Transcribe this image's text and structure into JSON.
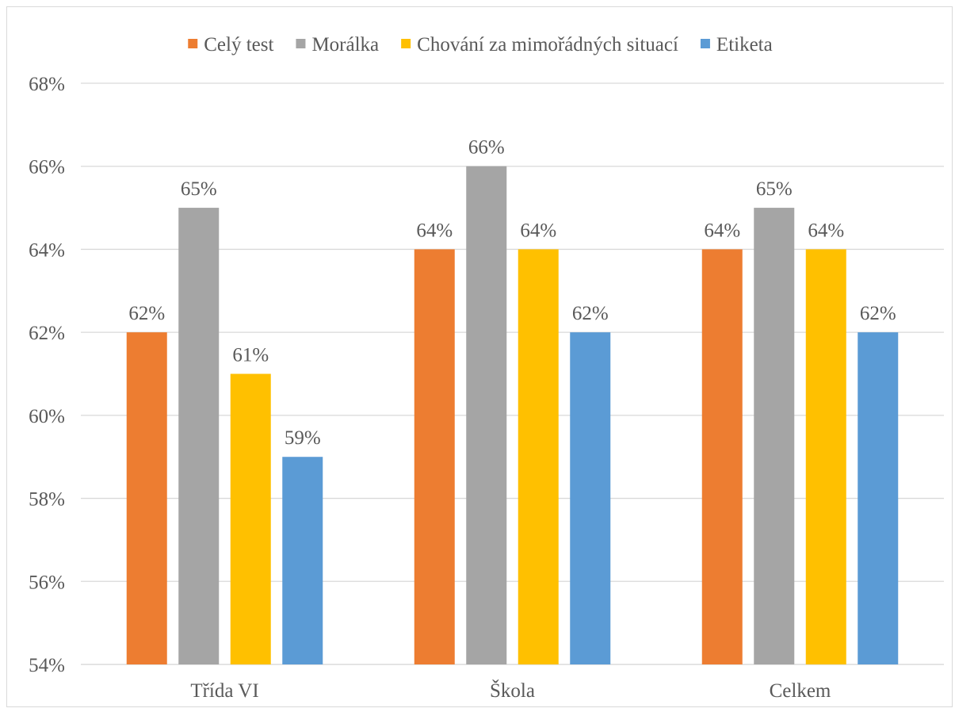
{
  "chart_data": {
    "type": "bar",
    "categories": [
      "Třída VI",
      "Škola",
      "Celkem"
    ],
    "series": [
      {
        "name": "Celý test",
        "color": "#ED7D31",
        "values": [
          62,
          64,
          64
        ]
      },
      {
        "name": "Morálka",
        "color": "#A5A5A5",
        "values": [
          65,
          66,
          65
        ]
      },
      {
        "name": "Chování za mimořádných situací",
        "color": "#FFC000",
        "values": [
          61,
          64,
          64
        ]
      },
      {
        "name": "Etiketa",
        "color": "#5B9BD5",
        "values": [
          59,
          62,
          62
        ]
      }
    ],
    "ylim": [
      54,
      68
    ],
    "y_ticks": [
      54,
      56,
      58,
      60,
      62,
      64,
      66,
      68
    ],
    "y_tick_labels": [
      "54%",
      "56%",
      "58%",
      "60%",
      "62%",
      "64%",
      "66%",
      "68%"
    ],
    "data_labels": [
      [
        "62%",
        "64%",
        "64%"
      ],
      [
        "65%",
        "66%",
        "65%"
      ],
      [
        "61%",
        "64%",
        "64%"
      ],
      [
        "59%",
        "62%",
        "62%"
      ]
    ],
    "grid": true,
    "legend_position": "top",
    "title": "",
    "xlabel": "",
    "ylabel": ""
  }
}
